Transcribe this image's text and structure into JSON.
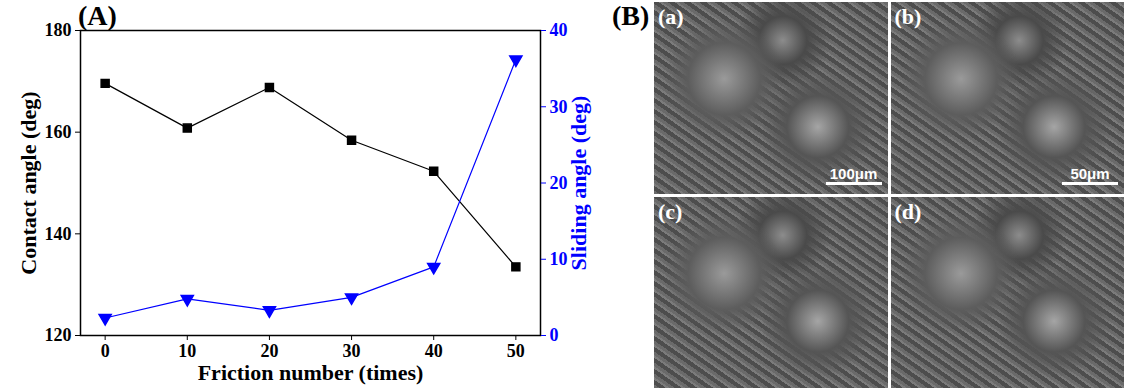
{
  "chart_data": {
    "type": "line",
    "title": "(A)",
    "x": [
      0,
      10,
      20,
      30,
      40,
      50
    ],
    "xlabel": "Friction number (times)",
    "ylabel": "Contact angle (deg)",
    "y2label": "Sliding angle (deg)",
    "xlim": [
      -3,
      53
    ],
    "xticks": [
      0,
      10,
      20,
      30,
      40,
      50
    ],
    "ylim": [
      120,
      180
    ],
    "yticks": [
      120,
      140,
      160,
      180
    ],
    "y2lim": [
      0,
      40
    ],
    "y2ticks": [
      0,
      10,
      20,
      30,
      40
    ],
    "series": [
      {
        "name": "Contact angle",
        "color": "#000000",
        "marker": "square",
        "line_style": "solid",
        "values": [
          169.6,
          160.8,
          168.8,
          158.4,
          152.3,
          133.5
        ]
      },
      {
        "name": "Sliding angle",
        "color": "#0000ff",
        "marker": "triangle-down",
        "line_style": "solid",
        "axis": "y2",
        "values": [
          2.3,
          4.8,
          3.3,
          5.0,
          9.0,
          36.2
        ]
      }
    ]
  },
  "panel_b": {
    "label": "(B)",
    "images": [
      {
        "label": "(a)",
        "scale_bar": "100μm"
      },
      {
        "label": "(b)",
        "scale_bar": "50μm"
      },
      {
        "label": "(c)"
      },
      {
        "label": "(d)"
      }
    ]
  }
}
